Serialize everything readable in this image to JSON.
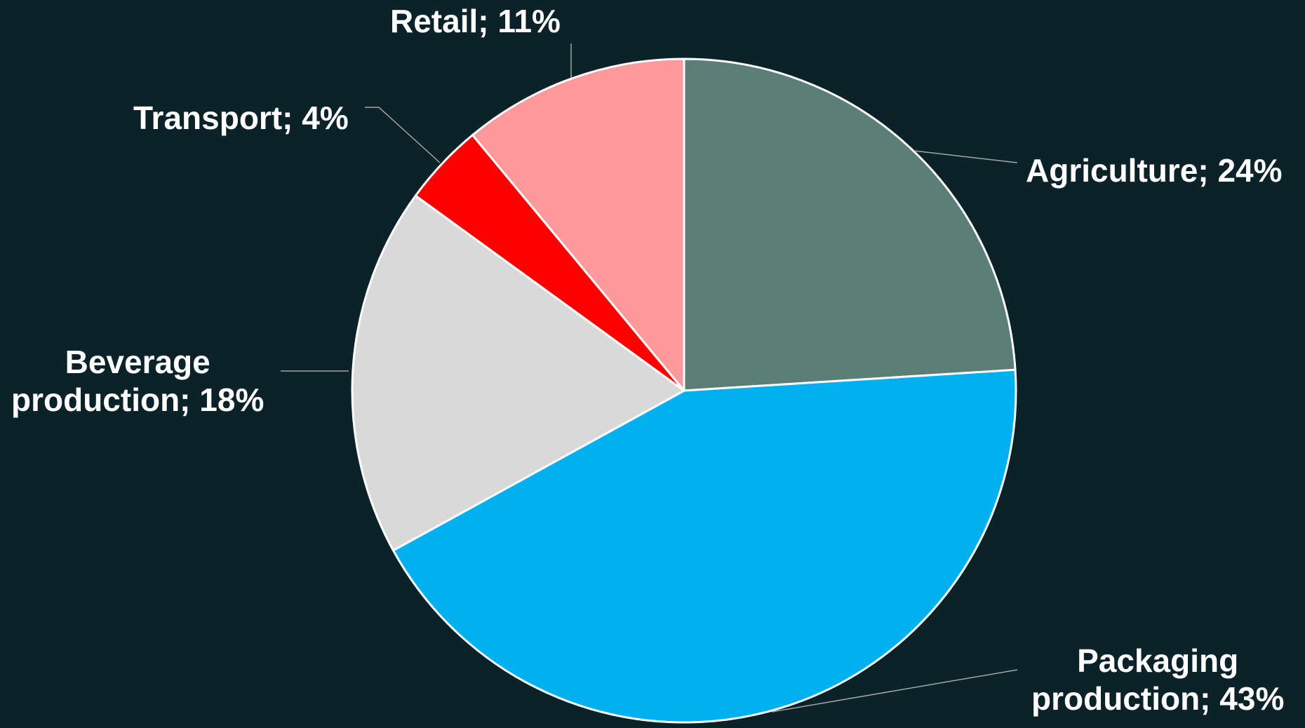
{
  "chart_data": {
    "type": "pie",
    "title": "",
    "start_angle_deg": 0,
    "direction": "clockwise",
    "legend": "none",
    "slices": [
      {
        "name": "Agriculture",
        "value": 24,
        "color": "#5b7f77",
        "label_lines": [
          "Agriculture; 24%"
        ]
      },
      {
        "name": "Packaging production",
        "value": 43,
        "color": "#00b0f0",
        "label_lines": [
          "Packaging",
          "production; 43%"
        ]
      },
      {
        "name": "Beverage production",
        "value": 18,
        "color": "#d9d9d9",
        "label_lines": [
          "Beverage",
          "production; 18%"
        ]
      },
      {
        "name": "Transport",
        "value": 4,
        "color": "#ff0000",
        "label_lines": [
          "Transport; 4%"
        ]
      },
      {
        "name": "Retail",
        "value": 11,
        "color": "#ff999c",
        "label_lines": [
          "Retail; 11%"
        ]
      }
    ]
  }
}
